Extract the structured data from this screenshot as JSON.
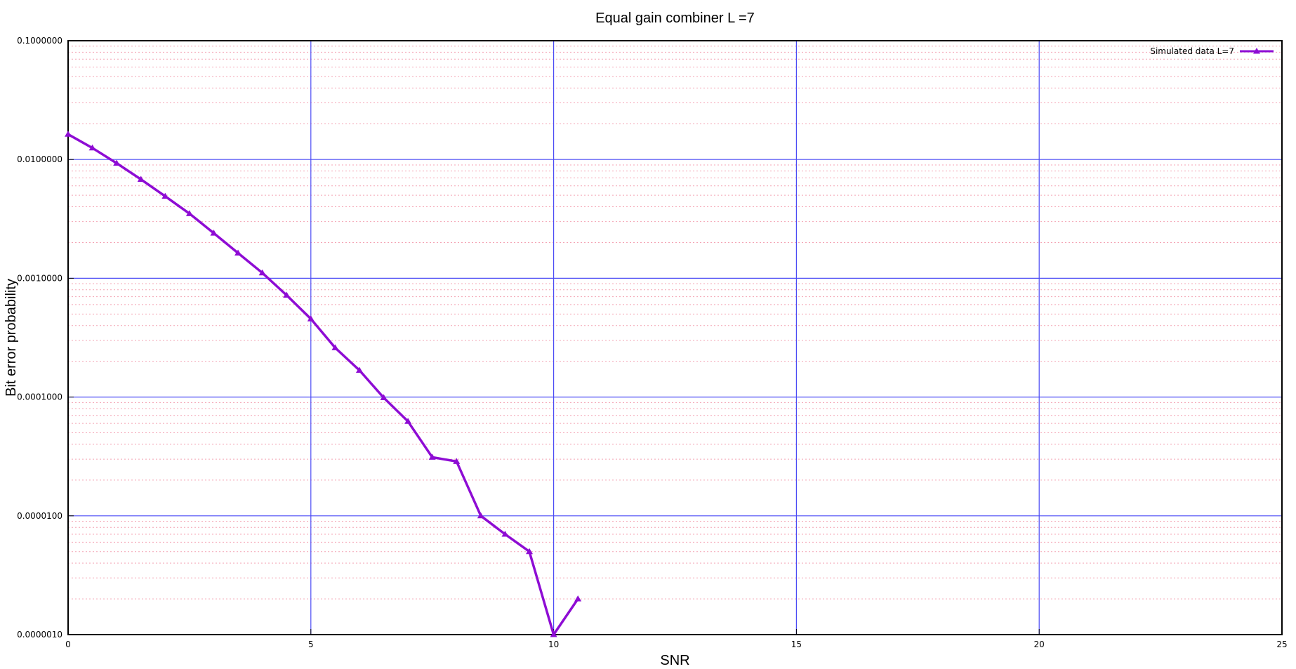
{
  "chart_data": {
    "type": "line",
    "title": "Equal gain combiner L =7",
    "xlabel": "SNR",
    "ylabel": "Bit error probability",
    "xlim": [
      0,
      25
    ],
    "ylim": [
      1e-06,
      0.1
    ],
    "yscale": "log",
    "x_ticks": [
      "0",
      "5",
      "10",
      "15",
      "20",
      "25"
    ],
    "y_ticks": [
      "0.1000000",
      "0.0100000",
      "0.0010000",
      "0.0001000",
      "0.0000100",
      "0.0000010"
    ],
    "grid": true,
    "major_grid_color": "#4b4bf5",
    "minor_grid_color": "#f4a4b4",
    "legend": {
      "position": "top-right"
    },
    "series": [
      {
        "name": "Simulated data L=7",
        "color": "#8e0cd4",
        "marker": "triangle",
        "x": [
          0,
          0.5,
          1,
          1.5,
          2,
          2.5,
          3,
          3.5,
          4,
          4.5,
          5,
          5.5,
          6,
          6.5,
          7,
          7.5,
          8,
          8.5,
          9,
          9.5,
          10,
          10.5
        ],
        "y": [
          0.0163,
          0.0125,
          0.0093,
          0.0068,
          0.0049,
          0.0035,
          0.0024,
          0.00163,
          0.00111,
          0.00072,
          0.000455,
          0.00026,
          0.000168,
          9.88e-05,
          6.24e-05,
          3.11e-05,
          2.87e-05,
          1e-05,
          7e-06,
          5e-06,
          1e-06,
          2e-06
        ]
      }
    ]
  }
}
